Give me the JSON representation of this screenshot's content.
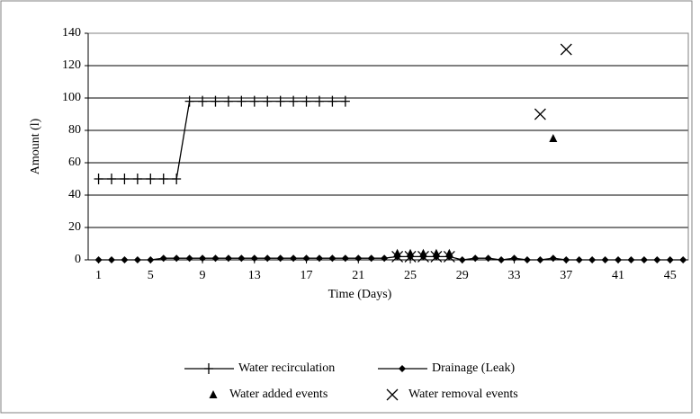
{
  "chart_data": {
    "type": "line",
    "x_label": "Time (Days)",
    "y_label": "Amount (l)",
    "xlim": [
      0.2,
      46.4
    ],
    "xticks": [
      1,
      5,
      9,
      13,
      17,
      21,
      25,
      29,
      33,
      37,
      41,
      45
    ],
    "ylim": [
      0,
      140
    ],
    "yticks": [
      0,
      20,
      40,
      60,
      80,
      100,
      120,
      140
    ],
    "grid": true,
    "series": [
      {
        "name": "Water recirculation",
        "color": "#000000",
        "line": true,
        "marker": "plus",
        "x": [
          1,
          2,
          3,
          4,
          5,
          6,
          7,
          8,
          9,
          10,
          11,
          12,
          13,
          14,
          15,
          16,
          17,
          18,
          19,
          20
        ],
        "values": [
          50,
          50,
          50,
          50,
          50,
          50,
          50,
          98,
          98,
          98,
          98,
          98,
          98,
          98,
          98,
          98,
          98,
          98,
          98,
          98
        ]
      },
      {
        "name": "Drainage (Leak)",
        "color": "#000000",
        "line": true,
        "marker": "diamond",
        "x": [
          1,
          2,
          3,
          4,
          5,
          6,
          7,
          8,
          9,
          10,
          11,
          12,
          13,
          14,
          15,
          16,
          17,
          18,
          19,
          20,
          21,
          22,
          23,
          24,
          25,
          26,
          27,
          28,
          29,
          30,
          31,
          32,
          33,
          34,
          35,
          36,
          37,
          38,
          39,
          40,
          41,
          42,
          43,
          44,
          45,
          46
        ],
        "values": [
          0,
          0,
          0,
          0,
          0,
          1,
          1,
          1,
          1,
          1,
          1,
          1,
          1,
          1,
          1,
          1,
          1,
          1,
          1,
          1,
          1,
          1,
          1,
          2,
          2,
          2,
          2,
          2,
          0,
          1,
          1,
          0,
          1,
          0,
          0,
          1,
          0,
          0,
          0,
          0,
          0,
          0,
          0,
          0,
          0,
          0
        ]
      },
      {
        "name": "Water added events",
        "color": "#000000",
        "line": false,
        "marker": "triangle",
        "x": [
          24,
          25,
          26,
          27,
          28,
          36
        ],
        "values": [
          4,
          4,
          4,
          4,
          4,
          75
        ]
      },
      {
        "name": "Water removal events",
        "color": "#000000",
        "line": false,
        "marker": "x",
        "x": [
          24,
          25,
          26,
          27,
          28,
          35,
          37
        ],
        "values": [
          2,
          2,
          2,
          2,
          2,
          90,
          130
        ]
      }
    ]
  }
}
